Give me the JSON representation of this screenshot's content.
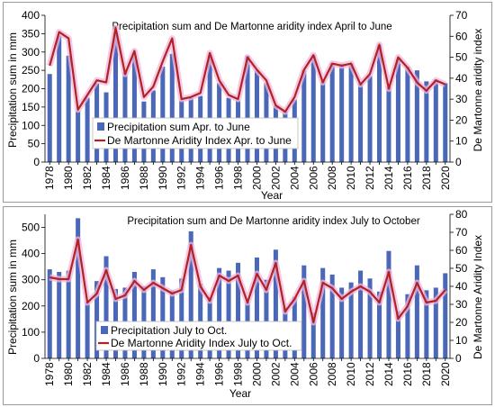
{
  "chart_data": [
    {
      "type": "bar",
      "title": "Precipitation sum and De Martonne aridity index April to June",
      "xlabel": "Year",
      "ylabel": "Precipitation sum in mm",
      "y2label": "De Martonne aridity index",
      "x": [
        1978,
        1979,
        1980,
        1981,
        1982,
        1983,
        1984,
        1985,
        1986,
        1987,
        1988,
        1989,
        1990,
        1991,
        1992,
        1993,
        1994,
        1995,
        1996,
        1997,
        1998,
        1999,
        2000,
        2001,
        2002,
        2003,
        2004,
        2005,
        2006,
        2007,
        2008,
        2009,
        2010,
        2011,
        2012,
        2013,
        2014,
        2015,
        2016,
        2017,
        2018,
        2019,
        2020
      ],
      "x_tick_labels": [
        "1978",
        "1980",
        "1982",
        "1984",
        "1986",
        "1988",
        "1990",
        "1992",
        "1994",
        "1996",
        "1998",
        "2000",
        "2002",
        "2004",
        "2006",
        "2008",
        "2010",
        "2012",
        "2014",
        "2016",
        "2018",
        "2020"
      ],
      "ylim": [
        0,
        400
      ],
      "y_ticks": [
        0,
        50,
        100,
        150,
        200,
        250,
        300,
        350,
        400
      ],
      "y2lim": [
        0,
        70
      ],
      "y2_ticks": [
        0,
        10,
        20,
        30,
        40,
        50,
        60,
        70
      ],
      "series": [
        {
          "name": "Precipitation sum Apr. to June",
          "axis": "left",
          "color": "#4a67b8",
          "values": [
            240,
            345,
            290,
            140,
            175,
            215,
            190,
            350,
            245,
            290,
            165,
            195,
            260,
            295,
            168,
            175,
            180,
            290,
            215,
            175,
            168,
            290,
            250,
            215,
            153,
            140,
            170,
            250,
            290,
            220,
            270,
            268,
            268,
            215,
            235,
            318,
            205,
            280,
            260,
            250,
            220,
            225,
            215
          ]
        },
        {
          "name": "De Martonne Aridity Index Apr. to June",
          "axis": "right",
          "color": "#b22222",
          "values": [
            46,
            62,
            59,
            25,
            32,
            39,
            38,
            64,
            42,
            53,
            31,
            36,
            48,
            59,
            30,
            31,
            33,
            52,
            39,
            32,
            30,
            50,
            44,
            39,
            27,
            24,
            31,
            44,
            51,
            38,
            47,
            46,
            47,
            37,
            42,
            56,
            35,
            50,
            45,
            38,
            34,
            39,
            37
          ]
        }
      ],
      "legend_position": "center-left"
    },
    {
      "type": "bar",
      "title": "Precipitation sum and De Martonne aridity index July to October",
      "xlabel": "Year",
      "ylabel": "Precipitation sum in mm",
      "y2label": "De Martonne Aridity Index",
      "x": [
        1978,
        1979,
        1980,
        1981,
        1982,
        1983,
        1984,
        1985,
        1986,
        1987,
        1988,
        1989,
        1990,
        1991,
        1992,
        1993,
        1994,
        1995,
        1996,
        1997,
        1998,
        1999,
        2000,
        2001,
        2002,
        2003,
        2004,
        2005,
        2006,
        2007,
        2008,
        2009,
        2010,
        2011,
        2012,
        2013,
        2014,
        2015,
        2016,
        2017,
        2018,
        2019,
        2020
      ],
      "x_tick_labels": [
        "1978",
        "1980",
        "1982",
        "1984",
        "1986",
        "1988",
        "1990",
        "1992",
        "1994",
        "1996",
        "1998",
        "2000",
        "2002",
        "2004",
        "2006",
        "2008",
        "2010",
        "2012",
        "2014",
        "2016",
        "2018",
        "2020"
      ],
      "ylim": [
        0,
        550
      ],
      "y_ticks": [
        0,
        100,
        200,
        300,
        400,
        500
      ],
      "y2lim": [
        0,
        80
      ],
      "y2_ticks": [
        0,
        10,
        20,
        30,
        40,
        50,
        60,
        70,
        80
      ],
      "series": [
        {
          "name": "Precipitation July to Oct.",
          "axis": "left",
          "color": "#4a67b8",
          "values": [
            340,
            330,
            335,
            535,
            215,
            295,
            390,
            265,
            270,
            330,
            275,
            340,
            310,
            260,
            305,
            485,
            285,
            235,
            345,
            335,
            365,
            215,
            385,
            300,
            415,
            195,
            235,
            355,
            175,
            345,
            320,
            270,
            290,
            335,
            305,
            255,
            410,
            180,
            245,
            355,
            260,
            270,
            325
          ]
        },
        {
          "name": "De Martonne Aridity Index July to Oct.",
          "axis": "right",
          "color": "#b22222",
          "values": [
            45,
            44,
            44,
            66,
            31,
            36,
            49,
            33,
            35,
            43,
            38,
            42,
            39,
            36,
            38,
            63,
            40,
            32,
            46,
            43,
            46,
            31,
            47,
            38,
            53,
            26,
            33,
            43,
            20,
            42,
            39,
            33,
            37,
            40,
            37,
            31,
            48,
            22,
            29,
            42,
            31,
            32,
            38
          ]
        }
      ],
      "legend_position": "bottom-center"
    }
  ]
}
